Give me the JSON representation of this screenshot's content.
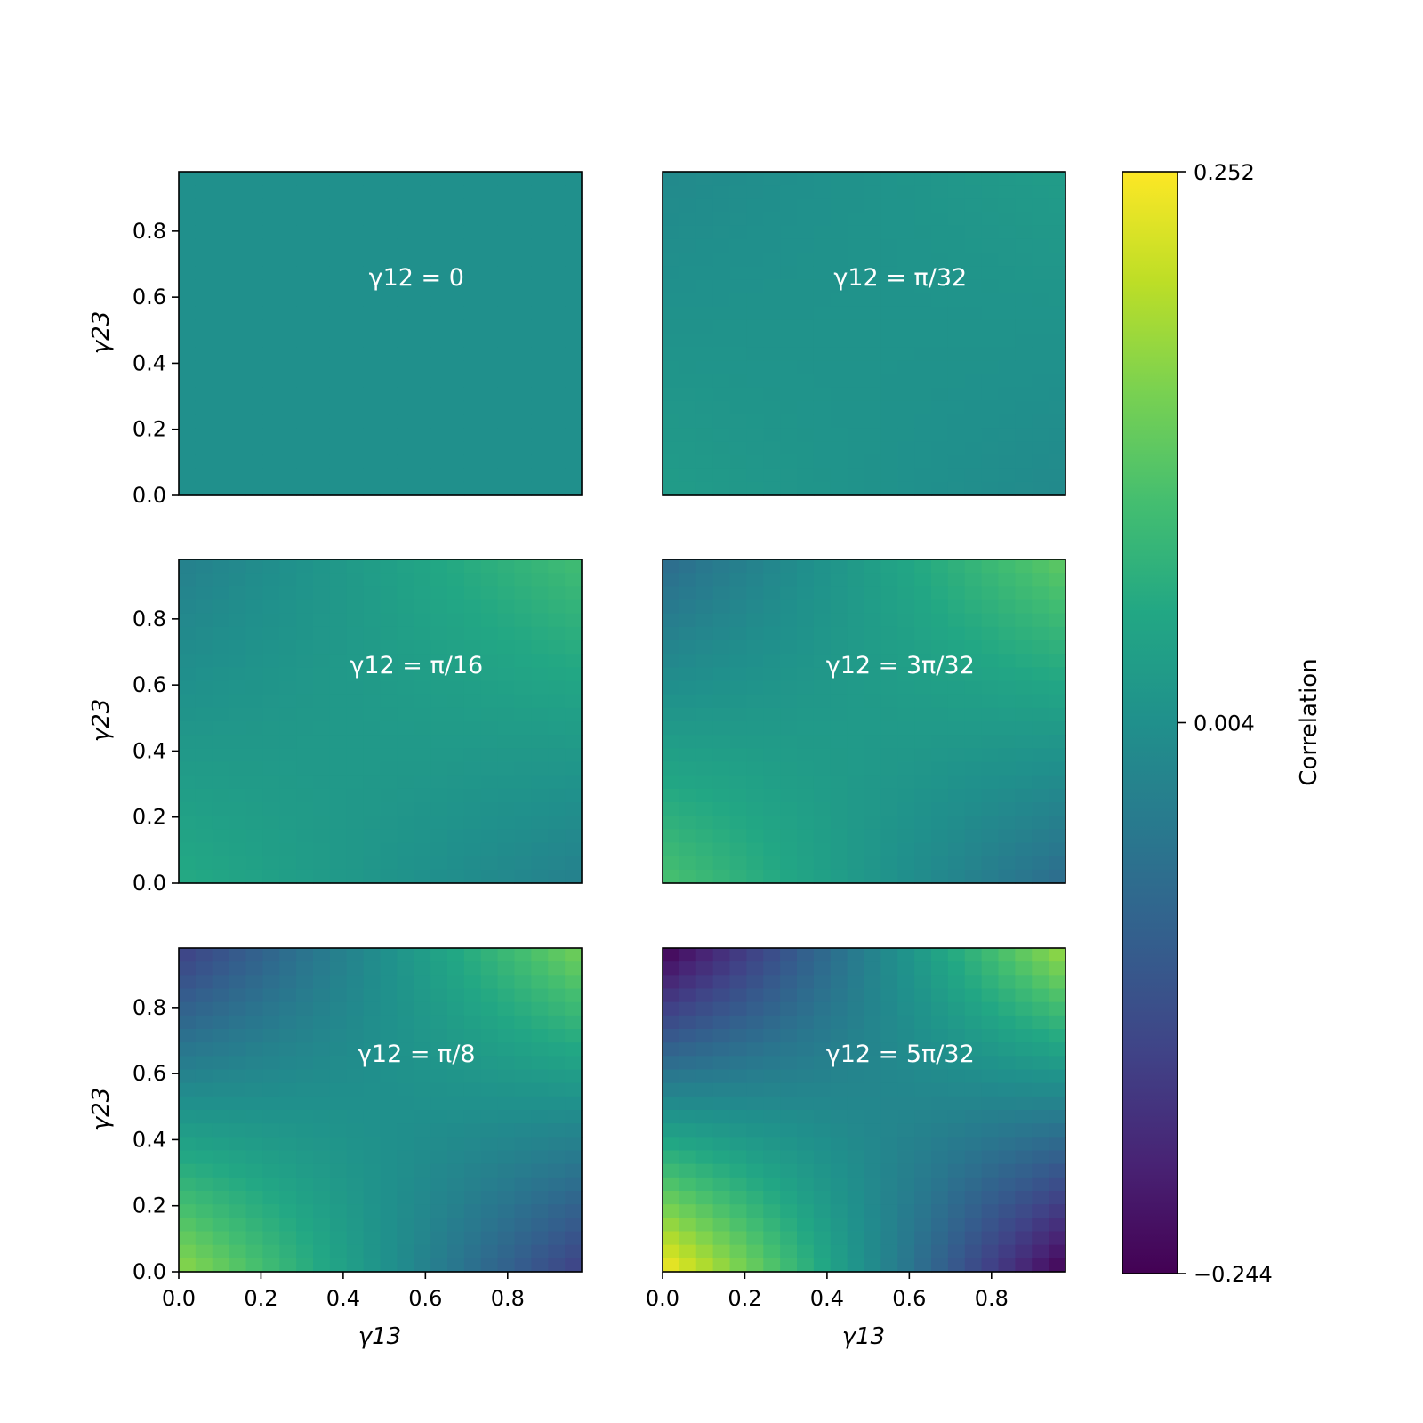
{
  "chart_data": {
    "type": "heatmap",
    "title": "",
    "xlabel": "γ13",
    "ylabel": "γ23",
    "xlim": [
      0.0,
      0.98
    ],
    "ylim": [
      0.0,
      0.98
    ],
    "xticks": [
      "0.0",
      "0.2",
      "0.4",
      "0.6",
      "0.8"
    ],
    "yticks": [
      "0.0",
      "0.2",
      "0.4",
      "0.6",
      "0.8"
    ],
    "grid": false,
    "panels": [
      {
        "label": "γ12 = 0",
        "gamma12": 0.0,
        "corners": {
          "bottom_left": 0.004,
          "bottom_right": 0.004,
          "top_left": 0.004,
          "top_right": 0.004
        }
      },
      {
        "label": "γ12 = π/32",
        "gamma12": 0.0982,
        "corners": {
          "bottom_left": 0.03,
          "bottom_right": -0.01,
          "top_left": -0.01,
          "top_right": 0.03
        }
      },
      {
        "label": "γ12 = π/16",
        "gamma12": 0.1963,
        "corners": {
          "bottom_left": 0.06,
          "bottom_right": -0.03,
          "top_left": -0.03,
          "top_right": 0.1
        }
      },
      {
        "label": "γ12 = 3π/32",
        "gamma12": 0.2945,
        "corners": {
          "bottom_left": 0.11,
          "bottom_right": -0.07,
          "top_left": -0.07,
          "top_right": 0.13
        }
      },
      {
        "label": "γ12 = π/8",
        "gamma12": 0.3927,
        "corners": {
          "bottom_left": 0.17,
          "bottom_right": -0.15,
          "top_left": -0.15,
          "top_right": 0.15
        }
      },
      {
        "label": "γ12 = 5π/32",
        "gamma12": 0.4909,
        "corners": {
          "bottom_left": 0.252,
          "bottom_right": -0.244,
          "top_left": -0.244,
          "top_right": 0.18
        }
      }
    ],
    "colorbar": {
      "label": "Correlation",
      "colormap": "viridis",
      "min": -0.244,
      "max": 0.252,
      "ticks": [
        "0.252",
        "0.004",
        "−0.244"
      ],
      "tick_values": [
        0.252,
        0.004,
        -0.244
      ]
    }
  },
  "colors": {
    "frame": "#000000",
    "panel_text": "#ffffff"
  }
}
